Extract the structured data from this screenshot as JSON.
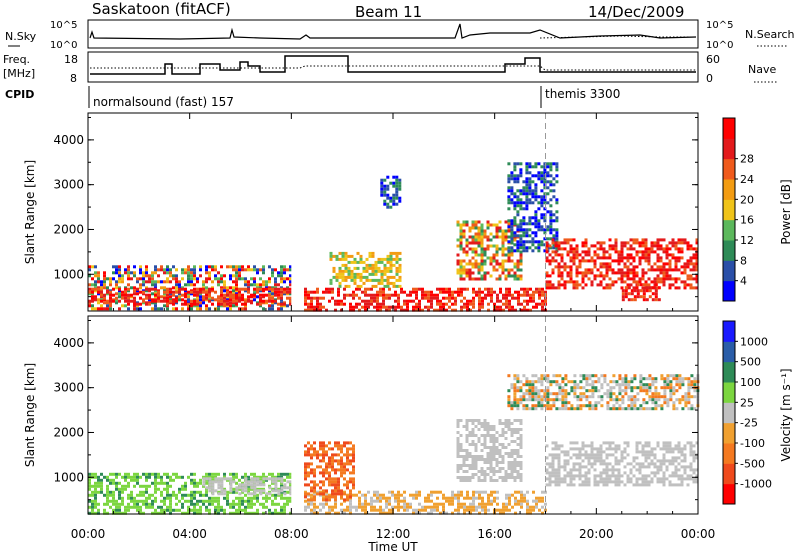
{
  "header": {
    "station": "Saskatoon (fitACF)",
    "beam": "Beam 11",
    "date": "14/Dec/2009"
  },
  "top_panel": {
    "left_label": "N.Sky",
    "right_label": "N.Search",
    "left_ticks": [
      "10^5",
      "10^0"
    ],
    "right_ticks": [
      "10^5",
      "10^0"
    ]
  },
  "freq_panel": {
    "left_label_1": "Freq.",
    "left_label_2": "[MHz]",
    "right_label": "Nave",
    "left_ticks": [
      "18",
      "8"
    ],
    "right_ticks": [
      "60",
      "0"
    ]
  },
  "cpid": {
    "label": "CPID",
    "programs": [
      {
        "name": "normalsound (fast) 157",
        "start_hour": 0
      },
      {
        "name": "themis 3300",
        "start_hour": 18
      }
    ]
  },
  "colors": {
    "power_scale": [
      "#0000ff",
      "#2a4fa8",
      "#2e8b57",
      "#5cb85c",
      "#f0c419",
      "#f39c12",
      "#ef5a1c",
      "#e31a1c",
      "#ff0000"
    ],
    "velocity_scale": [
      "#1a1aff",
      "#2a5da8",
      "#2e8b57",
      "#7cd640",
      "#c0c0c0",
      "#f0a030",
      "#f47920",
      "#ef4a1c",
      "#ff0000"
    ],
    "ground_scatter": "#c0c0c0"
  },
  "chart_data": [
    {
      "type": "heatmap",
      "name": "power",
      "ylabel": "Slant Range [km]",
      "yticks": [
        1000,
        2000,
        3000,
        4000
      ],
      "ylim": [
        180,
        4600
      ],
      "xlim": [
        0,
        24
      ],
      "colorbar_label": "Power [dB]",
      "colorbar_ticks": [
        "4",
        "8",
        "12",
        "16",
        "20",
        "24",
        "28"
      ],
      "echo_regions": [
        {
          "t": [
            0,
            8
          ],
          "r": [
            200,
            1200
          ],
          "level": "low-high"
        },
        {
          "t": [
            0,
            8
          ],
          "r": [
            300,
            700
          ],
          "level": "high"
        },
        {
          "t": [
            8.5,
            18
          ],
          "r": [
            200,
            700
          ],
          "level": "high"
        },
        {
          "t": [
            9.5,
            12.3
          ],
          "r": [
            700,
            1500
          ],
          "level": "mid"
        },
        {
          "t": [
            11.5,
            12.3
          ],
          "r": [
            2500,
            3200
          ],
          "level": "low"
        },
        {
          "t": [
            14.5,
            17
          ],
          "r": [
            900,
            2200
          ],
          "level": "mid-high"
        },
        {
          "t": [
            16.5,
            18.5
          ],
          "r": [
            1500,
            3500
          ],
          "level": "low"
        },
        {
          "t": [
            18,
            24
          ],
          "r": [
            700,
            1800
          ],
          "level": "high"
        },
        {
          "t": [
            21,
            22.5
          ],
          "r": [
            450,
            800
          ],
          "level": "high"
        }
      ]
    },
    {
      "type": "heatmap",
      "name": "velocity",
      "ylabel": "Slant Range [km]",
      "xlabel": "Time UT",
      "xticks": [
        "00:00",
        "04:00",
        "08:00",
        "12:00",
        "16:00",
        "20:00",
        "00:00"
      ],
      "yticks": [
        1000,
        2000,
        3000,
        4000
      ],
      "ylim": [
        180,
        4600
      ],
      "xlim": [
        0,
        24
      ],
      "colorbar_label": "Velocity [m s⁻¹]",
      "colorbar_ticks": [
        "1000",
        "500",
        "100",
        "25",
        "-25",
        "-100",
        "-500",
        "-1000"
      ],
      "echo_regions": [
        {
          "t": [
            0,
            8
          ],
          "r": [
            200,
            1100
          ],
          "level": "+100"
        },
        {
          "t": [
            4.5,
            8
          ],
          "r": [
            600,
            1000
          ],
          "level": "ground"
        },
        {
          "t": [
            8.5,
            18
          ],
          "r": [
            200,
            700
          ],
          "level": "-100"
        },
        {
          "t": [
            8.5,
            10.5
          ],
          "r": [
            500,
            1800
          ],
          "level": "-500"
        },
        {
          "t": [
            14.5,
            17
          ],
          "r": [
            900,
            2300
          ],
          "level": "ground"
        },
        {
          "t": [
            18,
            24
          ],
          "r": [
            800,
            1800
          ],
          "level": "ground"
        },
        {
          "t": [
            16.5,
            24
          ],
          "r": [
            2500,
            3300
          ],
          "level": "mixed"
        }
      ]
    }
  ]
}
